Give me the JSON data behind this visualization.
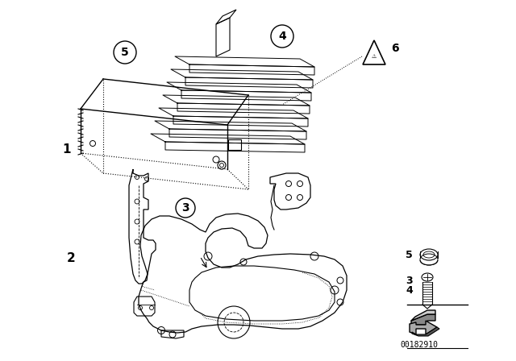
{
  "background_color": "#ffffff",
  "line_color": "#000000",
  "part_number": "00182910",
  "fig_width": 6.4,
  "fig_height": 4.48,
  "dpi": 100
}
